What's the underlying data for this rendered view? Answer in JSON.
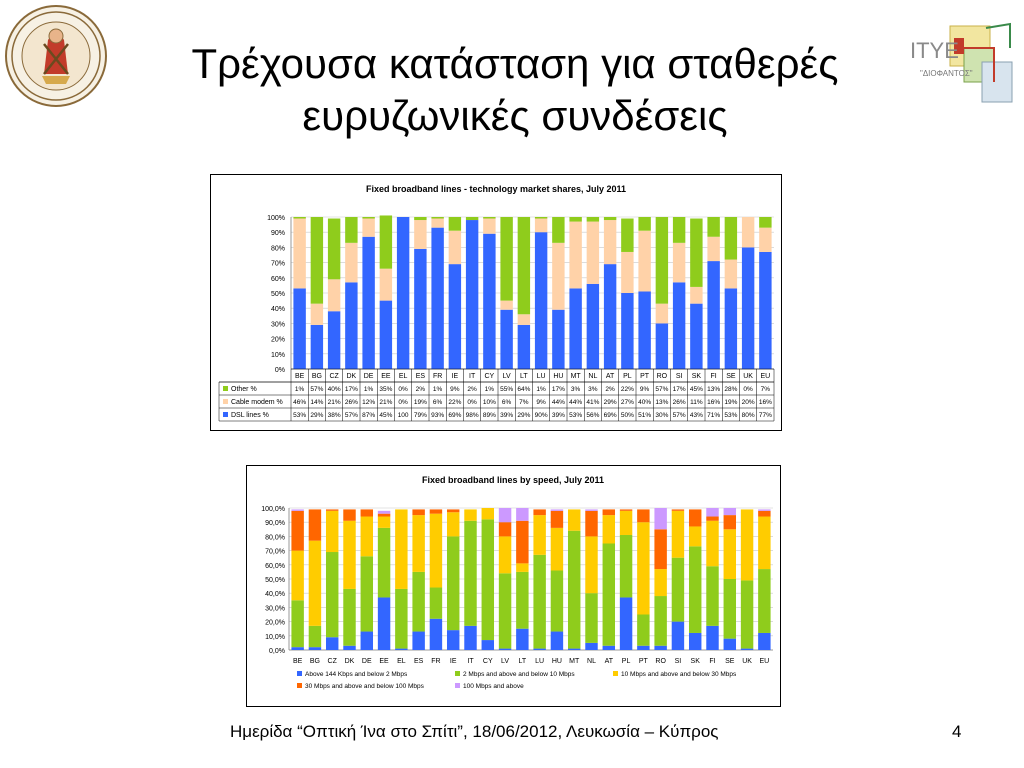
{
  "slide": {
    "title_line1": "Τρέχουσα κατάσταση για σταθερές",
    "title_line2": "ευρυζωνικές συνδέσεις",
    "footer": "Ημερίδα “Οπτική Ίνα στο Σπίτι”, 18/06/2012, Λευκωσία – Κύπρος",
    "page_number": "4"
  },
  "logos": {
    "left_logo_text": "ΠΑΝΕΠΙΣΤΗΜΙΟ ΠΑΤΡΩΝ · UNIVERSITY OF PATRAS",
    "right_logo_text": "ΙΤΥΕ",
    "right_logo_sub": "\"ΔΙΟΦΑΝΤΟΣ\""
  },
  "chart_data": [
    {
      "type": "bar",
      "stacked": true,
      "title": "Fixed broadband lines - technology market shares, July 2011",
      "categories": [
        "BE",
        "BG",
        "CZ",
        "DK",
        "DE",
        "EE",
        "EL",
        "ES",
        "FR",
        "IE",
        "IT",
        "CY",
        "LV",
        "LT",
        "LU",
        "HU",
        "MT",
        "NL",
        "AT",
        "PL",
        "PT",
        "RO",
        "SI",
        "SK",
        "FI",
        "SE",
        "UK",
        "EU"
      ],
      "ylim": [
        0,
        100
      ],
      "yticks": [
        "0%",
        "10%",
        "20%",
        "30%",
        "40%",
        "50%",
        "60%",
        "70%",
        "80%",
        "90%",
        "100%"
      ],
      "grid": true,
      "legend_position": "table-below",
      "series": [
        {
          "name": "DSL lines %",
          "color": "#3366ff",
          "values": [
            53,
            29,
            38,
            57,
            87,
            45,
            100,
            79,
            93,
            69,
            98,
            89,
            39,
            29,
            90,
            39,
            53,
            56,
            69,
            50,
            51,
            30,
            57,
            43,
            71,
            53,
            80,
            77
          ],
          "labels": [
            "53%",
            "29%",
            "38%",
            "57%",
            "87%",
            "45%",
            "100",
            "79%",
            "93%",
            "69%",
            "98%",
            "89%",
            "39%",
            "29%",
            "90%",
            "39%",
            "53%",
            "56%",
            "69%",
            "50%",
            "51%",
            "30%",
            "57%",
            "43%",
            "71%",
            "53%",
            "80%",
            "77%"
          ]
        },
        {
          "name": "Cable modem %",
          "color": "#ffd2a8",
          "values": [
            46,
            14,
            21,
            26,
            12,
            21,
            0,
            19,
            6,
            22,
            0,
            10,
            6,
            7,
            9,
            44,
            44,
            41,
            29,
            27,
            40,
            13,
            26,
            11,
            16,
            19,
            20,
            16
          ],
          "labels": [
            "46%",
            "14%",
            "21%",
            "26%",
            "12%",
            "21%",
            "0%",
            "19%",
            "6%",
            "22%",
            "0%",
            "10%",
            "6%",
            "7%",
            "9%",
            "44%",
            "44%",
            "41%",
            "29%",
            "27%",
            "40%",
            "13%",
            "26%",
            "11%",
            "16%",
            "19%",
            "20%",
            "16%"
          ]
        },
        {
          "name": "Other %",
          "color": "#8fcc1c",
          "values": [
            1,
            57,
            40,
            17,
            1,
            35,
            0,
            2,
            1,
            9,
            2,
            1,
            55,
            64,
            1,
            17,
            3,
            3,
            2,
            22,
            9,
            57,
            17,
            45,
            13,
            28,
            0,
            7
          ],
          "labels": [
            "1%",
            "57%",
            "40%",
            "17%",
            "1%",
            "35%",
            "0%",
            "2%",
            "1%",
            "9%",
            "2%",
            "1%",
            "55%",
            "64%",
            "1%",
            "17%",
            "3%",
            "3%",
            "2%",
            "22%",
            "9%",
            "57%",
            "17%",
            "45%",
            "13%",
            "28%",
            "0%",
            "7%"
          ]
        }
      ]
    },
    {
      "type": "bar",
      "stacked": true,
      "title": "Fixed broadband lines by speed, July 2011",
      "categories": [
        "BE",
        "BG",
        "CZ",
        "DK",
        "DE",
        "EE",
        "EL",
        "ES",
        "FR",
        "IE",
        "IT",
        "CY",
        "LV",
        "LT",
        "LU",
        "HU",
        "MT",
        "NL",
        "AT",
        "PL",
        "PT",
        "RO",
        "SI",
        "SK",
        "FI",
        "SE",
        "UK",
        "EU"
      ],
      "ylim": [
        0,
        100
      ],
      "yticks": [
        "0,0%",
        "10,0%",
        "20,0%",
        "30,0%",
        "40,0%",
        "50,0%",
        "60,0%",
        "70,0%",
        "80,0%",
        "90,0%",
        "100,0%"
      ],
      "grid": true,
      "legend_position": "bottom",
      "series": [
        {
          "name": "Above 144 Kbps and below 2 Mbps",
          "color": "#3366ff",
          "values": [
            2,
            2,
            9,
            3,
            13,
            37,
            1,
            13,
            22,
            14,
            17,
            7,
            1,
            15,
            1,
            13,
            1,
            5,
            3,
            37,
            3,
            3,
            20,
            12,
            17,
            8,
            1,
            12
          ]
        },
        {
          "name": "2 Mbps and above and below 10 Mbps",
          "color": "#8fcc1c",
          "values": [
            33,
            15,
            60,
            40,
            53,
            49,
            42,
            42,
            22,
            66,
            74,
            85,
            53,
            40,
            66,
            43,
            83,
            35,
            72,
            44,
            22,
            35,
            45,
            61,
            42,
            42,
            48,
            45
          ]
        },
        {
          "name": "10 Mbps and above and below 30 Mbps",
          "color": "#ffcc00",
          "values": [
            35,
            60,
            29,
            48,
            28,
            8,
            56,
            40,
            52,
            17,
            8,
            8,
            26,
            6,
            28,
            30,
            15,
            40,
            20,
            17,
            65,
            19,
            33,
            14,
            32,
            35,
            50,
            37
          ]
        },
        {
          "name": "30 Mbps and above and below 100 Mbps",
          "color": "#ff6600",
          "values": [
            28,
            22,
            1,
            8,
            5,
            2,
            0,
            4,
            3,
            2,
            0,
            0,
            10,
            30,
            4,
            12,
            0,
            18,
            4,
            1,
            9,
            28,
            1,
            12,
            3,
            10,
            0,
            4
          ]
        },
        {
          "name": "100 Mbps and above",
          "color": "#cc99ff",
          "values": [
            1,
            0,
            0,
            0,
            0,
            2,
            0,
            0,
            0,
            0,
            0,
            0,
            10,
            9,
            0,
            1,
            0,
            1,
            0,
            0,
            0,
            15,
            0,
            0,
            6,
            5,
            0,
            1
          ]
        }
      ]
    }
  ]
}
